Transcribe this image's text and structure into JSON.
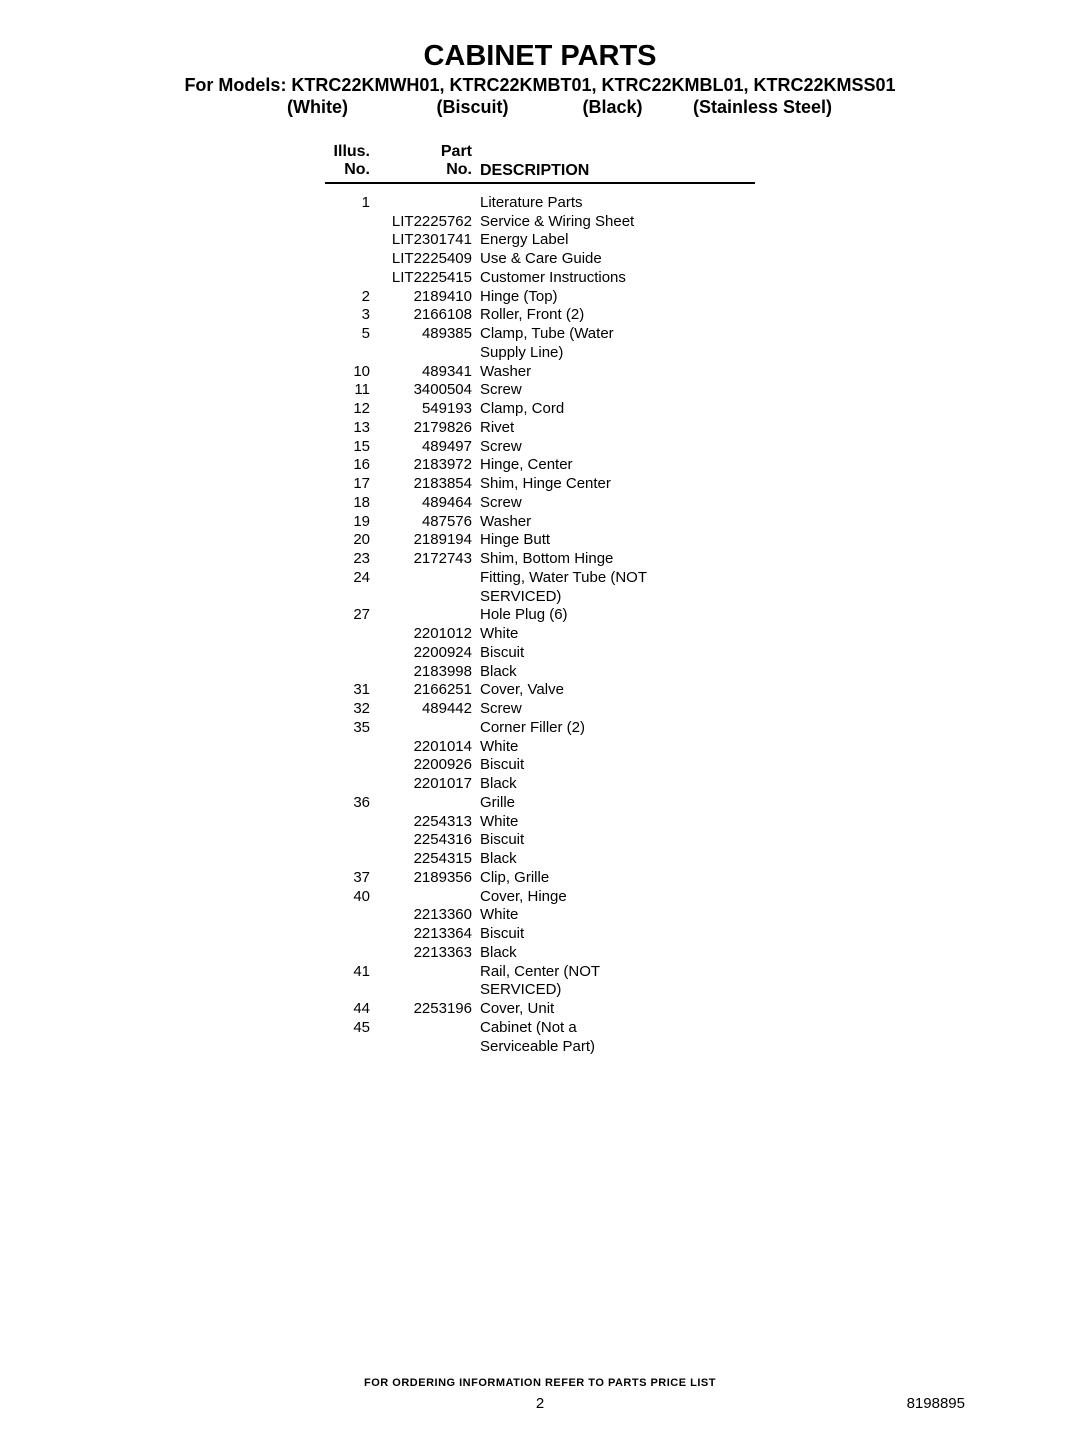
{
  "header": {
    "title": "CABINET PARTS",
    "subtitle": "For Models: KTRC22KMWH01, KTRC22KMBT01, KTRC22KMBL01, KTRC22KMSS01",
    "colors": {
      "white": "(White)",
      "biscuit": "(Biscuit)",
      "black": "(Black)",
      "stainless": "(Stainless Steel)"
    }
  },
  "table": {
    "headers": {
      "illus1": "Illus.",
      "illus2": "No.",
      "part1": "Part",
      "part2": "No.",
      "desc": "DESCRIPTION"
    }
  },
  "rows": [
    {
      "illus": "1",
      "part": "",
      "desc": "Literature Parts"
    },
    {
      "illus": "",
      "part": "LIT2225762",
      "desc": "Service & Wiring Sheet"
    },
    {
      "illus": "",
      "part": "LIT2301741",
      "desc": "Energy Label"
    },
    {
      "illus": "",
      "part": "LIT2225409",
      "desc": "Use & Care Guide"
    },
    {
      "illus": "",
      "part": "LIT2225415",
      "desc": "Customer Instructions"
    },
    {
      "illus": "2",
      "part": "2189410",
      "desc": "Hinge (Top)"
    },
    {
      "illus": "3",
      "part": "2166108",
      "desc": "Roller, Front (2)"
    },
    {
      "illus": "5",
      "part": "489385",
      "desc": "Clamp, Tube (Water Supply Line)"
    },
    {
      "illus": "10",
      "part": "489341",
      "desc": "Washer"
    },
    {
      "illus": "11",
      "part": "3400504",
      "desc": "Screw"
    },
    {
      "illus": "12",
      "part": "549193",
      "desc": "Clamp, Cord"
    },
    {
      "illus": "13",
      "part": "2179826",
      "desc": "Rivet"
    },
    {
      "illus": "15",
      "part": "489497",
      "desc": "Screw"
    },
    {
      "illus": "16",
      "part": "2183972",
      "desc": "Hinge, Center"
    },
    {
      "illus": "17",
      "part": "2183854",
      "desc": "Shim, Hinge Center"
    },
    {
      "illus": "18",
      "part": "489464",
      "desc": "Screw"
    },
    {
      "illus": "19",
      "part": "487576",
      "desc": "Washer"
    },
    {
      "illus": "20",
      "part": "2189194",
      "desc": "Hinge Butt"
    },
    {
      "illus": "23",
      "part": "2172743",
      "desc": "Shim, Bottom Hinge"
    },
    {
      "illus": "24",
      "part": "",
      "desc": "Fitting, Water Tube (NOT SERVICED)"
    },
    {
      "illus": "27",
      "part": "",
      "desc": "Hole Plug (6)"
    },
    {
      "illus": "",
      "part": "2201012",
      "desc": "White"
    },
    {
      "illus": "",
      "part": "2200924",
      "desc": "Biscuit"
    },
    {
      "illus": "",
      "part": "2183998",
      "desc": "Black"
    },
    {
      "illus": "31",
      "part": "2166251",
      "desc": "Cover, Valve"
    },
    {
      "illus": "32",
      "part": "489442",
      "desc": "Screw"
    },
    {
      "illus": "35",
      "part": "",
      "desc": "Corner Filler (2)"
    },
    {
      "illus": "",
      "part": "2201014",
      "desc": "White"
    },
    {
      "illus": "",
      "part": "2200926",
      "desc": "Biscuit"
    },
    {
      "illus": "",
      "part": "2201017",
      "desc": "Black"
    },
    {
      "illus": "36",
      "part": "",
      "desc": "Grille"
    },
    {
      "illus": "",
      "part": "2254313",
      "desc": "White"
    },
    {
      "illus": "",
      "part": "2254316",
      "desc": "Biscuit"
    },
    {
      "illus": "",
      "part": "2254315",
      "desc": "Black"
    },
    {
      "illus": "37",
      "part": "2189356",
      "desc": "Clip, Grille"
    },
    {
      "illus": "40",
      "part": "",
      "desc": "Cover, Hinge"
    },
    {
      "illus": "",
      "part": "2213360",
      "desc": "White"
    },
    {
      "illus": "",
      "part": "2213364",
      "desc": "Biscuit"
    },
    {
      "illus": "",
      "part": "2213363",
      "desc": "Black"
    },
    {
      "illus": "41",
      "part": "",
      "desc": "Rail, Center (NOT SERVICED)"
    },
    {
      "illus": "44",
      "part": "2253196",
      "desc": "Cover, Unit"
    },
    {
      "illus": "45",
      "part": "",
      "desc": "Cabinet (Not a Serviceable Part)"
    }
  ],
  "footer": {
    "note": "FOR ORDERING INFORMATION REFER TO PARTS PRICE LIST",
    "page": "2",
    "docid": "8198895"
  }
}
